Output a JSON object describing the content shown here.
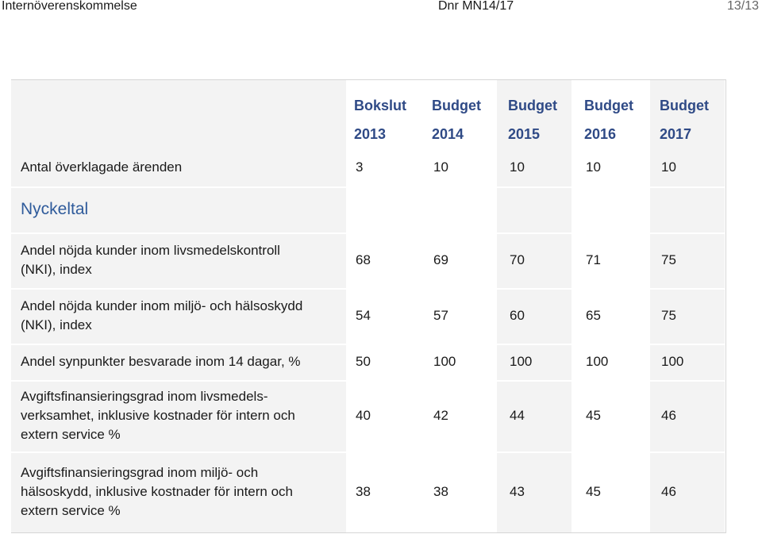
{
  "header": {
    "left": "Internöverenskommelse",
    "center": "Dnr MN14/17",
    "right": "13/13"
  },
  "table": {
    "columns": [
      {
        "line1": "Bokslut",
        "line2": "2013"
      },
      {
        "line1": "Budget",
        "line2": "2014"
      },
      {
        "line1": "Budget",
        "line2": "2015"
      },
      {
        "line1": "Budget",
        "line2": "2016"
      },
      {
        "line1": "Budget",
        "line2": "2017"
      }
    ],
    "rows": [
      {
        "label": "Antal överklagade ärenden",
        "values": [
          "3",
          "10",
          "10",
          "10",
          "10"
        ]
      },
      {
        "label": "Nyckeltal",
        "values": []
      },
      {
        "label": "Andel nöjda kunder inom livsmedelskontroll\n(NKI), index",
        "values": [
          "68",
          "69",
          "70",
          "71",
          "75"
        ]
      },
      {
        "label": "Andel nöjda kunder inom miljö- och hälsoskydd\n(NKI), index",
        "values": [
          "54",
          "57",
          "60",
          "65",
          "75"
        ]
      },
      {
        "label": "Andel synpunkter besvarade inom 14 dagar, %",
        "values": [
          "50",
          "100",
          "100",
          "100",
          "100"
        ]
      },
      {
        "label": "Avgiftsfinansieringsgrad inom livsmedels-\nverksamhet, inklusive kostnader för intern och\nextern service %",
        "values": [
          "40",
          "42",
          "44",
          "45",
          "46"
        ]
      },
      {
        "label": "Avgiftsfinansieringsgrad inom miljö- och\nhälsoskydd, inklusive kostnader för intern och\nextern service %",
        "values": [
          "38",
          "38",
          "43",
          "45",
          "46"
        ]
      }
    ]
  }
}
